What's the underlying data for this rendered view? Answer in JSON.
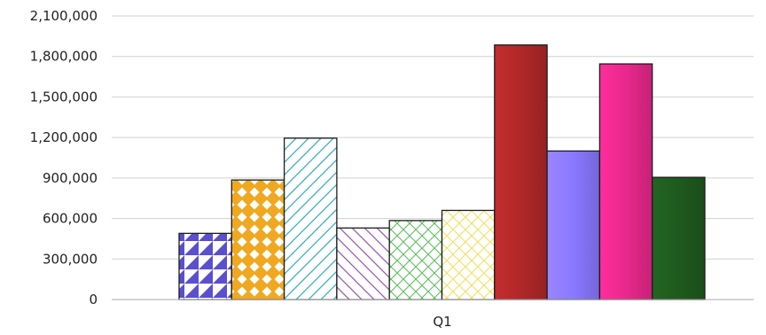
{
  "chart_data": {
    "type": "bar",
    "title": "",
    "xlabel": "",
    "ylabel": "",
    "categories": [
      "Q1"
    ],
    "ylim": [
      0,
      2100000
    ],
    "yticks": [
      0,
      300000,
      600000,
      900000,
      1200000,
      1500000,
      1800000,
      2100000
    ],
    "ytick_labels": [
      "0",
      "300,000",
      "600,000",
      "900,000",
      "1,200,000",
      "1,500,000",
      "1,800,000",
      "2,100,000"
    ],
    "grid": true,
    "legend": "none",
    "series": [
      {
        "values": [
          490000
        ],
        "color": "#5a4fcf",
        "pattern": "triangles"
      },
      {
        "values": [
          885000
        ],
        "color": "#f0a820",
        "pattern": "diamonds"
      },
      {
        "values": [
          1195000
        ],
        "color": "#3ab0b8",
        "pattern": "diagonal-stripes"
      },
      {
        "values": [
          530000
        ],
        "color": "#9a5ab0",
        "pattern": "back-diagonal-stripes"
      },
      {
        "values": [
          585000
        ],
        "color": "#5cbf5c",
        "pattern": "crosshatch"
      },
      {
        "values": [
          660000
        ],
        "color": "#f0e060",
        "pattern": "crosshatch"
      },
      {
        "values": [
          1885000
        ],
        "color": "#b02828",
        "pattern": "solid"
      },
      {
        "values": [
          1100000
        ],
        "color": "#8a78ff",
        "pattern": "solid"
      },
      {
        "values": [
          1745000
        ],
        "color": "#e8288c",
        "pattern": "solid"
      },
      {
        "values": [
          905000
        ],
        "color": "#1e5a1e",
        "pattern": "solid"
      }
    ]
  }
}
